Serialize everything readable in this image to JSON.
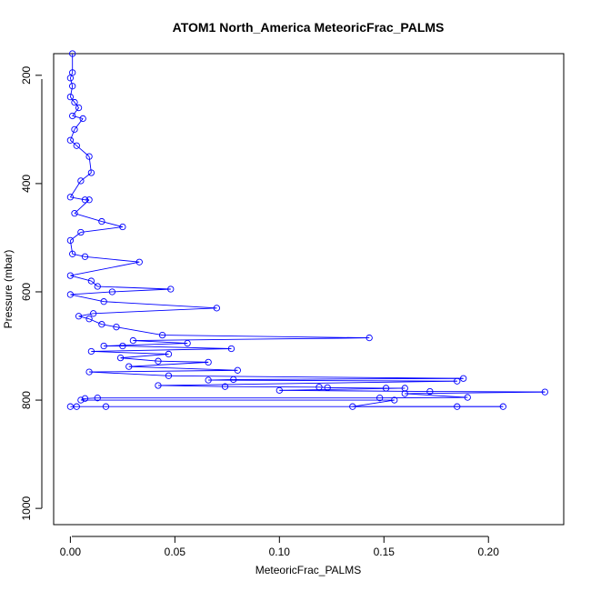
{
  "chart_data": {
    "type": "scatter",
    "title": "ATOM1 North_America MeteoricFrac_PALMS",
    "xlabel": "MeteoricFrac_PALMS",
    "ylabel": "Pressure (mbar)",
    "xlim": [
      -0.008,
      0.236
    ],
    "ylim": [
      1030,
      160
    ],
    "y_axis_inverted": true,
    "x_ticks": [
      0.0,
      0.05,
      0.1,
      0.15,
      0.2
    ],
    "x_tick_labels": [
      "0.00",
      "0.05",
      "0.10",
      "0.15",
      "0.20"
    ],
    "y_ticks": [
      200,
      400,
      600,
      800,
      1000
    ],
    "y_tick_labels": [
      "200",
      "400",
      "600",
      "800",
      "1000"
    ],
    "grid": false,
    "color": "#0000ff",
    "marker": "open-circle",
    "connected_lines": true,
    "series": [
      {
        "points": [
          {
            "x": 0.001,
            "y": 160
          },
          {
            "x": 0.001,
            "y": 195
          },
          {
            "x": 0.0,
            "y": 205
          },
          {
            "x": 0.001,
            "y": 220
          },
          {
            "x": 0.0,
            "y": 240
          },
          {
            "x": 0.002,
            "y": 250
          },
          {
            "x": 0.004,
            "y": 260
          },
          {
            "x": 0.001,
            "y": 275
          },
          {
            "x": 0.006,
            "y": 280
          },
          {
            "x": 0.002,
            "y": 300
          },
          {
            "x": 0.0,
            "y": 320
          },
          {
            "x": 0.003,
            "y": 330
          },
          {
            "x": 0.009,
            "y": 350
          },
          {
            "x": 0.01,
            "y": 380
          },
          {
            "x": 0.005,
            "y": 395
          },
          {
            "x": 0.0,
            "y": 425
          },
          {
            "x": 0.007,
            "y": 430
          },
          {
            "x": 0.009,
            "y": 430
          },
          {
            "x": 0.002,
            "y": 455
          },
          {
            "x": 0.015,
            "y": 470
          },
          {
            "x": 0.025,
            "y": 480
          },
          {
            "x": 0.005,
            "y": 490
          },
          {
            "x": 0.0,
            "y": 505
          },
          {
            "x": 0.001,
            "y": 530
          },
          {
            "x": 0.007,
            "y": 535
          },
          {
            "x": 0.033,
            "y": 545
          },
          {
            "x": 0.0,
            "y": 570
          },
          {
            "x": 0.01,
            "y": 580
          },
          {
            "x": 0.013,
            "y": 590
          },
          {
            "x": 0.048,
            "y": 595
          },
          {
            "x": 0.02,
            "y": 600
          },
          {
            "x": 0.0,
            "y": 605
          },
          {
            "x": 0.016,
            "y": 618
          },
          {
            "x": 0.07,
            "y": 630
          },
          {
            "x": 0.011,
            "y": 640
          },
          {
            "x": 0.004,
            "y": 645
          },
          {
            "x": 0.009,
            "y": 650
          },
          {
            "x": 0.015,
            "y": 660
          },
          {
            "x": 0.022,
            "y": 665
          },
          {
            "x": 0.044,
            "y": 680
          },
          {
            "x": 0.143,
            "y": 685
          },
          {
            "x": 0.03,
            "y": 690
          },
          {
            "x": 0.056,
            "y": 695
          },
          {
            "x": 0.016,
            "y": 700
          },
          {
            "x": 0.025,
            "y": 700
          },
          {
            "x": 0.077,
            "y": 705
          },
          {
            "x": 0.01,
            "y": 710
          },
          {
            "x": 0.047,
            "y": 715
          },
          {
            "x": 0.024,
            "y": 722
          },
          {
            "x": 0.042,
            "y": 728
          },
          {
            "x": 0.066,
            "y": 730
          },
          {
            "x": 0.028,
            "y": 738
          },
          {
            "x": 0.08,
            "y": 745
          },
          {
            "x": 0.009,
            "y": 748
          },
          {
            "x": 0.047,
            "y": 755
          },
          {
            "x": 0.188,
            "y": 760
          },
          {
            "x": 0.078,
            "y": 762
          },
          {
            "x": 0.066,
            "y": 763
          },
          {
            "x": 0.185,
            "y": 765
          },
          {
            "x": 0.042,
            "y": 773
          },
          {
            "x": 0.074,
            "y": 775
          },
          {
            "x": 0.119,
            "y": 776
          },
          {
            "x": 0.123,
            "y": 777
          },
          {
            "x": 0.151,
            "y": 778
          },
          {
            "x": 0.16,
            "y": 778
          },
          {
            "x": 0.1,
            "y": 782
          },
          {
            "x": 0.172,
            "y": 784
          },
          {
            "x": 0.227,
            "y": 785
          },
          {
            "x": 0.16,
            "y": 788
          },
          {
            "x": 0.19,
            "y": 795
          },
          {
            "x": 0.148,
            "y": 796
          },
          {
            "x": 0.013,
            "y": 796
          },
          {
            "x": 0.007,
            "y": 797
          },
          {
            "x": 0.005,
            "y": 800
          },
          {
            "x": 0.155,
            "y": 800
          },
          {
            "x": 0.135,
            "y": 812
          },
          {
            "x": 0.185,
            "y": 812
          },
          {
            "x": 0.207,
            "y": 812
          },
          {
            "x": 0.017,
            "y": 812
          },
          {
            "x": 0.003,
            "y": 812
          },
          {
            "x": 0.0,
            "y": 812
          }
        ]
      }
    ]
  }
}
